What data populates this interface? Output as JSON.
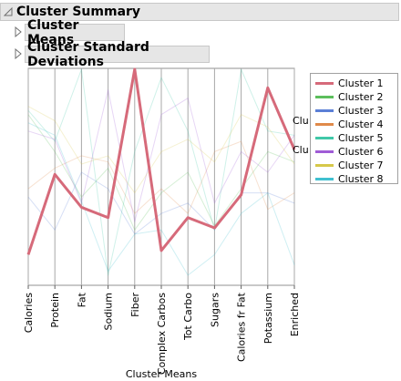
{
  "report": {
    "summary_title": "Cluster Summary",
    "means_title": "Cluster Means",
    "sd_title": "Cluster Standard Deviations"
  },
  "chart_data": {
    "type": "line",
    "xlabel": "Cluster Means",
    "categories": [
      "Calories",
      "Protein",
      "Fat",
      "Sodium",
      "Fiber",
      "Complex Carbos",
      "Tot Carbo",
      "Sugars",
      "Calories fr Fat",
      "Potassium",
      "Enriched"
    ],
    "ylim": [
      0,
      1
    ],
    "grid": true,
    "highlighted_series": "Cluster 1",
    "series": [
      {
        "name": "Cluster 1",
        "color": "#d66a7a",
        "values": [
          0.1,
          0.49,
          0.33,
          0.28,
          1.0,
          0.12,
          0.28,
          0.23,
          0.39,
          0.91,
          0.61
        ]
      },
      {
        "name": "Cluster 2",
        "color": "#5cbe5c",
        "values": [
          0.78,
          0.6,
          0.38,
          0.52,
          0.22,
          0.4,
          0.5,
          0.24,
          0.42,
          0.6,
          0.55
        ]
      },
      {
        "name": "Cluster 3",
        "color": "#5b7fd6",
        "values": [
          0.38,
          0.22,
          0.5,
          0.42,
          0.2,
          0.3,
          0.35,
          0.22,
          0.4,
          0.4,
          0.35
        ]
      },
      {
        "name": "Cluster 4",
        "color": "#e08a4a",
        "values": [
          0.42,
          0.52,
          0.58,
          0.55,
          0.3,
          0.42,
          0.3,
          0.6,
          0.65,
          0.32,
          0.4
        ]
      },
      {
        "name": "Cluster 5",
        "color": "#40c8a8",
        "values": [
          0.8,
          0.65,
          1.0,
          0.0,
          0.6,
          0.96,
          0.7,
          0.22,
          1.0,
          0.7,
          0.68
        ]
      },
      {
        "name": "Cluster 6",
        "color": "#a05cd6",
        "values": [
          0.7,
          0.66,
          0.35,
          0.9,
          0.26,
          0.78,
          0.86,
          0.35,
          0.6,
          0.5,
          0.68
        ]
      },
      {
        "name": "Cluster 7",
        "color": "#d6c84a",
        "values": [
          0.82,
          0.75,
          0.54,
          0.58,
          0.4,
          0.6,
          0.66,
          0.55,
          0.78,
          0.72,
          0.54
        ]
      },
      {
        "name": "Cluster 8",
        "color": "#40c0d0",
        "values": [
          0.74,
          0.68,
          0.36,
          0.02,
          0.2,
          0.22,
          0.0,
          0.1,
          0.3,
          0.4,
          0.05
        ]
      }
    ],
    "end_labels": [
      "Clu",
      "Clu"
    ]
  }
}
